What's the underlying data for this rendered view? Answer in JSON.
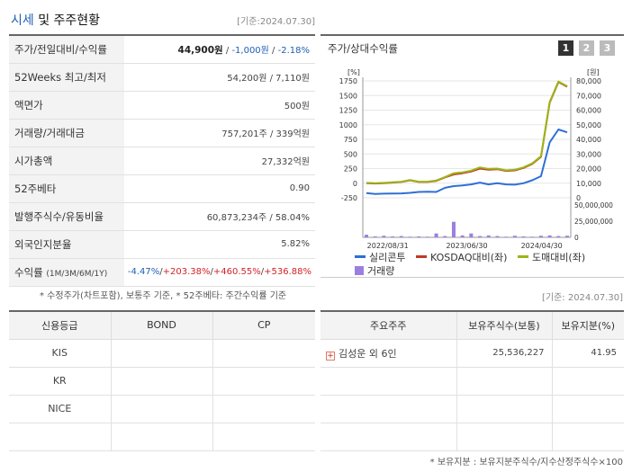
{
  "header": {
    "title_main": "시세",
    "title_rest": " 및 주주현황",
    "date": "[기준:2024.07.30]"
  },
  "quote": {
    "price_label": "주가/전일대비/수익률",
    "price": "44,900원",
    "sep1": " / ",
    "change": "-1,000원",
    "sep2": " / ",
    "change_pct": "-2.18%",
    "wk52_label": "52Weeks 최고/최저",
    "wk52_value": "54,200원 / 7,110원",
    "face_label": "액면가",
    "face_value": "500원",
    "volume_label": "거래량/거래대금",
    "volume_value": "757,201주 / 339억원",
    "mcap_label": "시가총액",
    "mcap_value": "27,332억원",
    "beta_label": "52주베타",
    "beta_value": "0.90",
    "shares_label": "발행주식수/유동비율",
    "shares_value": "60,873,234주 / 58.04%",
    "foreign_label": "외국인지분율",
    "foreign_value": "5.82%",
    "return_label": "수익률",
    "return_period": "(1M/3M/6M/1Y)",
    "return_1m": "-4.47%",
    "return_3m": "+203.38%",
    "return_6m": "+460.55%",
    "return_1y": "+536.88%",
    "slash": "/"
  },
  "note1": "* 수정주가(차트포함), 보통주 기준, * 52주베타: 주간수익률 기준",
  "chart_panel": {
    "title": "주가/상대수익률",
    "tabs": [
      "1",
      "2",
      "3"
    ],
    "active_tab": "1",
    "left_unit": "[%]",
    "right_unit": "[원]"
  },
  "chart_data": {
    "type": "line",
    "x_ticks": [
      "2022/08/31",
      "2023/06/30",
      "2024/04/30"
    ],
    "y_left_ticks": [
      "1750",
      "1500",
      "1250",
      "1000",
      "750",
      "500",
      "250",
      "0",
      "-250"
    ],
    "y_left_range": [
      -250,
      1750
    ],
    "y_right_ticks": [
      "80,000",
      "70,000",
      "60,000",
      "50,000",
      "40,000",
      "30,000",
      "20,000",
      "10,000",
      "0"
    ],
    "y_right_range": [
      0,
      80000
    ],
    "y_volume_ticks": [
      "50,000,000",
      "25,000,000",
      "0"
    ],
    "y_volume_range": [
      0,
      50000000
    ],
    "series": [
      {
        "name": "실리콘투",
        "color": "#2f6fd6",
        "axis": "left",
        "values": [
          -170,
          -185,
          -180,
          -178,
          -175,
          -165,
          -150,
          -145,
          -150,
          -80,
          -50,
          -40,
          -20,
          10,
          -20,
          0,
          -20,
          -25,
          0,
          50,
          120,
          700,
          920,
          870
        ]
      },
      {
        "name": "KOSDAQ대비(좌)",
        "color": "#c0392b",
        "axis": "left",
        "values": [
          0,
          -5,
          0,
          10,
          20,
          50,
          20,
          20,
          40,
          100,
          150,
          170,
          200,
          250,
          230,
          240,
          210,
          220,
          260,
          330,
          450,
          1380,
          1730,
          1650
        ]
      },
      {
        "name": "도매대비(좌)",
        "color": "#9db517",
        "axis": "left",
        "values": [
          5,
          0,
          5,
          15,
          25,
          55,
          25,
          25,
          45,
          105,
          170,
          185,
          215,
          270,
          245,
          250,
          220,
          230,
          270,
          340,
          460,
          1390,
          1740,
          1660
        ]
      },
      {
        "name": "거래량",
        "color": "#9b7fe0",
        "axis": "volume",
        "values": [
          4000000,
          1500000,
          2500000,
          1500000,
          2000000,
          1000000,
          1500000,
          1000000,
          6000000,
          2000000,
          24000000,
          3000000,
          6000000,
          2000000,
          3000000,
          2000000,
          1000000,
          2500000,
          1500000,
          1000000,
          2500000,
          3000000,
          2000000,
          2500000
        ]
      }
    ],
    "legend_position": "bottom",
    "grid": true
  },
  "date2": "[기준: 2024.07.30]",
  "credit": {
    "headers": [
      "신용등급",
      "BOND",
      "CP"
    ],
    "rows": [
      [
        "KIS",
        "",
        ""
      ],
      [
        "KR",
        "",
        ""
      ],
      [
        "NICE",
        "",
        ""
      ],
      [
        "",
        "",
        ""
      ]
    ]
  },
  "holders": {
    "headers": [
      "주요주주",
      "보유주식수(보통)",
      "보유지분(%)"
    ],
    "rows": [
      [
        "김성운 외 6인",
        "25,536,227",
        "41.95"
      ],
      [
        "",
        "",
        ""
      ],
      [
        "",
        "",
        ""
      ],
      [
        "",
        "",
        ""
      ]
    ]
  },
  "note2": "* 보유지분 : 보유지분주식수/지수산정주식수×100",
  "colors": {
    "accent_blue": "#1f5fb5",
    "up_red": "#d2232a",
    "header_bg": "#f3f3f3"
  }
}
